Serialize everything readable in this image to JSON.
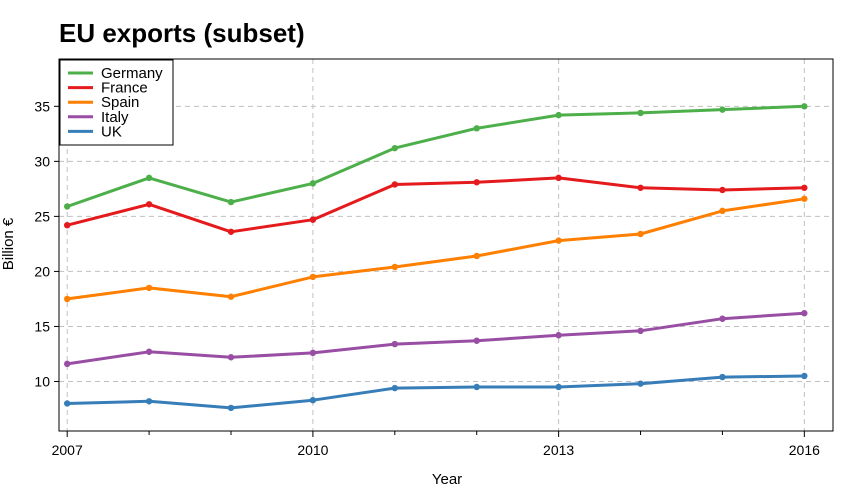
{
  "chart_data": {
    "type": "line",
    "title": "EU exports (subset)",
    "xlabel": "Year",
    "ylabel": "Billion €",
    "x": [
      2007,
      2008,
      2009,
      2010,
      2011,
      2012,
      2013,
      2014,
      2015,
      2016
    ],
    "xticks": [
      2007,
      2010,
      2013,
      2016
    ],
    "yticks": [
      10,
      15,
      20,
      25,
      30,
      35
    ],
    "xlim": [
      2006.9,
      2016.35
    ],
    "ylim": [
      5.5,
      39.3
    ],
    "grid": true,
    "legend": "top-left",
    "series": [
      {
        "name": "Germany",
        "color": "#4daf4a",
        "values": [
          25.9,
          28.5,
          26.3,
          28.0,
          31.2,
          33.0,
          34.2,
          34.4,
          34.7,
          35.0
        ]
      },
      {
        "name": "France",
        "color": "#e41a1c",
        "values": [
          24.2,
          26.1,
          23.6,
          24.7,
          27.9,
          28.1,
          28.5,
          27.6,
          27.4,
          27.6
        ]
      },
      {
        "name": "Spain",
        "color": "#ff7f00",
        "values": [
          17.5,
          18.5,
          17.7,
          19.5,
          20.4,
          21.4,
          22.8,
          23.4,
          25.5,
          26.6
        ]
      },
      {
        "name": "Italy",
        "color": "#984ea3",
        "values": [
          11.6,
          12.7,
          12.2,
          12.6,
          13.4,
          13.7,
          14.2,
          14.6,
          15.7,
          16.2
        ]
      },
      {
        "name": "UK",
        "color": "#377eb8",
        "values": [
          8.0,
          8.2,
          7.6,
          8.3,
          9.4,
          9.5,
          9.5,
          9.8,
          10.4,
          10.5
        ]
      }
    ]
  }
}
